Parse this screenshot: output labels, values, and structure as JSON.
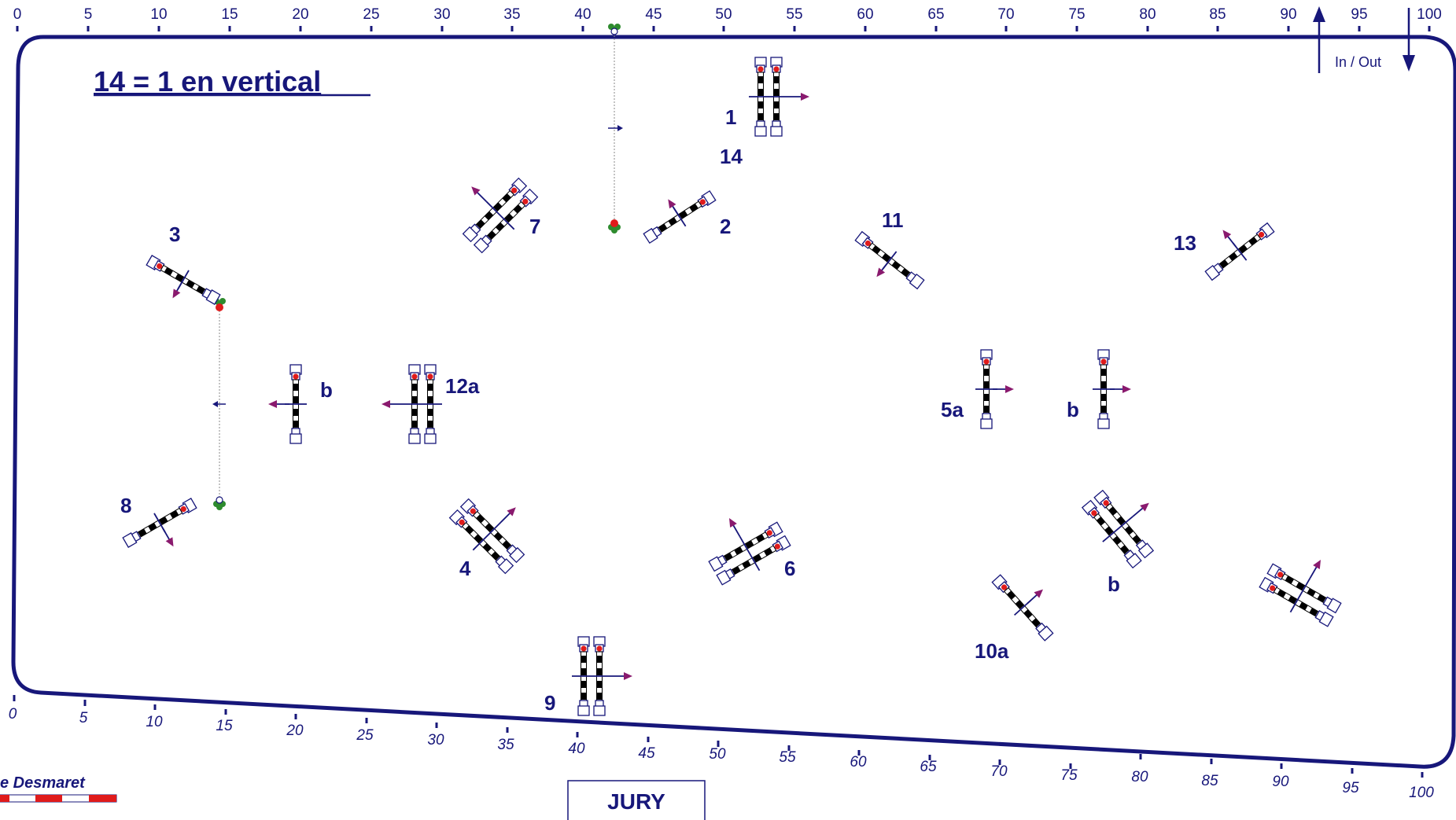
{
  "course": {
    "title": "14 = 1 en vertical",
    "in_out_label": "In / Out",
    "jury_label": "JURY",
    "designer": "e Desmaret"
  },
  "scale": {
    "top_labels": [
      "0",
      "5",
      "10",
      "15",
      "20",
      "25",
      "30",
      "35",
      "40",
      "45",
      "50",
      "55",
      "60",
      "65",
      "70",
      "75",
      "80",
      "85",
      "90",
      "95",
      "100"
    ],
    "bottom_labels": [
      "0",
      "5",
      "10",
      "15",
      "20",
      "25",
      "30",
      "35",
      "40",
      "45",
      "50",
      "55",
      "60",
      "65",
      "70",
      "75",
      "80",
      "85",
      "90",
      "95",
      "100"
    ]
  },
  "fences": [
    {
      "id": "f1",
      "label": "1"
    },
    {
      "id": "f14",
      "label": "14"
    },
    {
      "id": "f2",
      "label": "2"
    },
    {
      "id": "f3",
      "label": "3"
    },
    {
      "id": "f4",
      "label": "4"
    },
    {
      "id": "f5a",
      "label": "5a"
    },
    {
      "id": "f5b",
      "label": "b"
    },
    {
      "id": "f6",
      "label": "6"
    },
    {
      "id": "f7",
      "label": "7"
    },
    {
      "id": "f8",
      "label": "8"
    },
    {
      "id": "f9",
      "label": "9"
    },
    {
      "id": "f10a",
      "label": "10a"
    },
    {
      "id": "f10b",
      "label": "b"
    },
    {
      "id": "f11",
      "label": "11"
    },
    {
      "id": "f12a",
      "label": "12a"
    },
    {
      "id": "f12b",
      "label": "b"
    },
    {
      "id": "f13",
      "label": "13"
    }
  ],
  "colors": {
    "navy": "#17177a",
    "arrow": "#8a1a6e",
    "red_dot": "#e01b1b",
    "flag_green": "#2e8b2e"
  }
}
